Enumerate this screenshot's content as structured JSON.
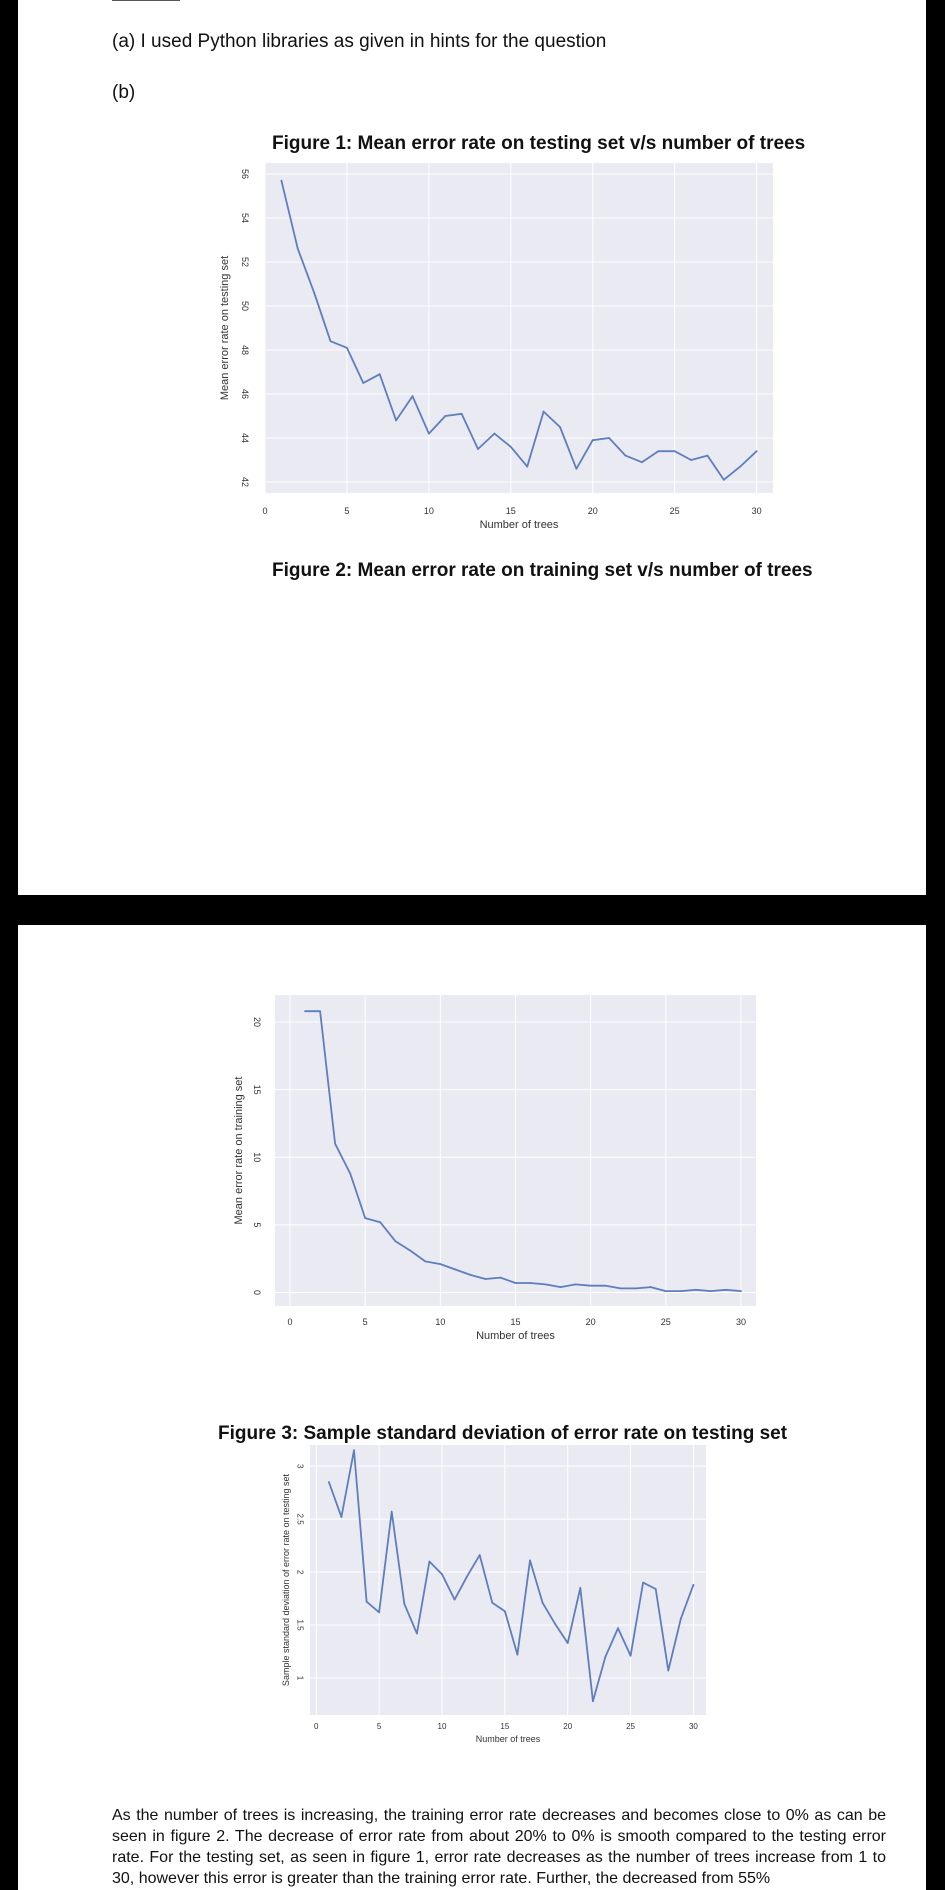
{
  "document": {
    "line_a": "(a) I used Python libraries as given in hints for the question",
    "line_b": "(b)",
    "figure1_caption": "Figure 1: Mean error rate on testing set v/s number of trees",
    "figure2_caption": "Figure 2: Mean error rate on training set v/s number of trees",
    "figure3_caption": "Figure 3: Sample standard deviation of error rate on testing set",
    "paragraph": "As the number of trees is increasing, the training error rate decreases and becomes close to 0% as can be seen in figure 2. The decrease of error rate from about 20% to 0% is smooth compared to the testing error rate. For the testing set, as seen in figure 1, error rate decreases as the number of trees increase from 1 to 30, however this error is greater than the training error rate. Further, the decreased from 55%"
  },
  "colors": {
    "plot_background": "#e9eaf2",
    "grid": "#ffffff",
    "line": "#5e7ebc"
  },
  "chart_data": [
    {
      "type": "line",
      "title": "",
      "xlabel": "Number of trees",
      "ylabel": "Mean error rate on testing set",
      "xlim": [
        0,
        31
      ],
      "ylim": [
        41.5,
        56.5
      ],
      "xticks": [
        0,
        5,
        10,
        15,
        20,
        25,
        30
      ],
      "yticks": [
        42,
        44,
        46,
        48,
        50,
        52,
        54,
        56
      ],
      "grid": true,
      "x": [
        1,
        2,
        3,
        4,
        5,
        6,
        7,
        8,
        9,
        10,
        11,
        12,
        13,
        14,
        15,
        16,
        17,
        18,
        19,
        20,
        21,
        22,
        23,
        24,
        25,
        26,
        27,
        28,
        29,
        30
      ],
      "y": [
        55.7,
        52.6,
        50.6,
        48.4,
        48.1,
        46.5,
        46.9,
        44.8,
        45.9,
        44.2,
        45.0,
        45.1,
        43.5,
        44.2,
        43.6,
        42.7,
        45.2,
        44.5,
        42.6,
        43.9,
        44.0,
        43.2,
        42.9,
        43.4,
        43.4,
        43.0,
        43.2,
        42.1,
        42.7,
        43.4
      ]
    },
    {
      "type": "line",
      "title": "",
      "xlabel": "Number of trees",
      "ylabel": "Mean error rate on training set",
      "xlim": [
        -1,
        31
      ],
      "ylim": [
        -1,
        22
      ],
      "xticks": [
        0,
        5,
        10,
        15,
        20,
        25,
        30
      ],
      "yticks": [
        0,
        5,
        10,
        15,
        20
      ],
      "grid": true,
      "x": [
        1,
        2,
        3,
        4,
        5,
        6,
        7,
        8,
        9,
        10,
        11,
        12,
        13,
        14,
        15,
        16,
        17,
        18,
        19,
        20,
        21,
        22,
        23,
        24,
        25,
        26,
        27,
        28,
        29,
        30
      ],
      "y": [
        20.8,
        20.8,
        11.0,
        8.8,
        5.5,
        5.2,
        3.8,
        3.1,
        2.3,
        2.1,
        1.7,
        1.3,
        1.0,
        1.1,
        0.7,
        0.7,
        0.6,
        0.4,
        0.6,
        0.5,
        0.5,
        0.3,
        0.3,
        0.4,
        0.1,
        0.1,
        0.2,
        0.1,
        0.2,
        0.1
      ]
    },
    {
      "type": "line",
      "title": "",
      "xlabel": "Number of trees",
      "ylabel": "Sample standard deviation of error rate on testing set",
      "xlim": [
        -0.5,
        31
      ],
      "ylim": [
        0.65,
        3.2
      ],
      "xticks": [
        0,
        5,
        10,
        15,
        20,
        25,
        30
      ],
      "yticks": [
        1.0,
        1.5,
        2.0,
        2.5,
        3.0
      ],
      "grid": true,
      "x": [
        1,
        2,
        3,
        4,
        5,
        6,
        7,
        8,
        9,
        10,
        11,
        12,
        13,
        14,
        15,
        16,
        17,
        18,
        19,
        20,
        21,
        22,
        23,
        24,
        25,
        26,
        27,
        28,
        29,
        30
      ],
      "y": [
        2.85,
        2.52,
        3.15,
        1.72,
        1.62,
        2.57,
        1.7,
        1.42,
        2.1,
        1.98,
        1.74,
        1.96,
        2.16,
        1.71,
        1.63,
        1.22,
        2.11,
        1.71,
        1.51,
        1.33,
        1.85,
        0.78,
        1.2,
        1.47,
        1.21,
        1.9,
        1.84,
        1.07,
        1.56,
        1.88
      ]
    }
  ]
}
